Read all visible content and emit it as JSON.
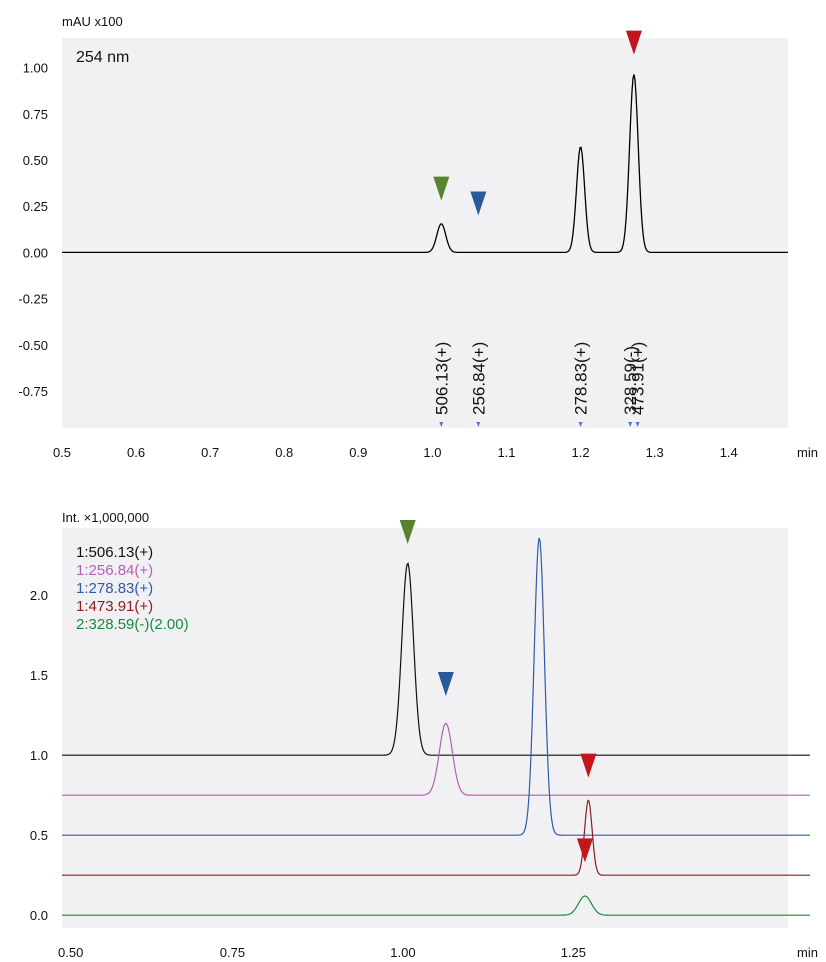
{
  "chart_data": [
    {
      "type": "line",
      "panel": "uv",
      "ylabel": "mAU x100",
      "xlabel": "min",
      "annotation": "254 nm",
      "xlim": [
        0.5,
        1.48
      ],
      "ylim": [
        -0.95,
        1.16
      ],
      "x_ticks": [
        "0.5",
        "0.6",
        "0.7",
        "0.8",
        "0.9",
        "1.0",
        "1.1",
        "1.2",
        "1.3",
        "1.4"
      ],
      "y_ticks": [
        "1.00",
        "0.75",
        "0.50",
        "0.25",
        "0.00",
        "-0.25",
        "-0.50",
        "-0.75"
      ],
      "grid": false,
      "baseline": 0.0,
      "peaks": [
        {
          "rt": 1.012,
          "height": 0.155,
          "width": 0.006
        },
        {
          "rt": 1.2,
          "height": 0.572,
          "width": 0.0055
        },
        {
          "rt": 1.272,
          "height": 0.963,
          "width": 0.0058
        }
      ],
      "markers": [
        {
          "x": 1.012,
          "y": 0.28,
          "color": "#56842c"
        },
        {
          "x": 1.062,
          "y": 0.2,
          "color": "#2a5a9c"
        },
        {
          "x": 1.272,
          "y": 1.07,
          "color": "#c0161c"
        }
      ],
      "mass_labels": [
        {
          "x": 1.012,
          "label": "506.13(+)"
        },
        {
          "x": 1.062,
          "label": "256.84(+)"
        },
        {
          "x": 1.2,
          "label": "278.83(+)"
        },
        {
          "x": 1.267,
          "label": "328.59(-)"
        },
        {
          "x": 1.277,
          "label": "473.91(+)"
        }
      ],
      "small_tick_marks_x": [
        1.012,
        1.062,
        1.2,
        1.267,
        1.277
      ],
      "colors": {
        "trace": "#000000",
        "plot_bg": "#f1f1f4"
      }
    },
    {
      "type": "line",
      "panel": "ms",
      "ylabel": "Int. ×1,000,000",
      "xlabel": "min",
      "xlim": [
        0.5,
        1.6
      ],
      "ylim": [
        -0.08,
        2.42
      ],
      "x_ticks": [
        "0.50",
        "0.75",
        "1.00",
        "1.25"
      ],
      "y_ticks": [
        "2.0",
        "1.5",
        "1.0",
        "0.5",
        "0.0"
      ],
      "grid": false,
      "series": [
        {
          "name": "1:506.13(+)",
          "color": "#111111",
          "baseline": 1.0,
          "peak_rt": 1.007,
          "peak_height": 1.2,
          "width": 0.0085
        },
        {
          "name": "1:256.84(+)",
          "color": "#b85cb5",
          "baseline": 0.75,
          "peak_rt": 1.063,
          "peak_height": 0.45,
          "width": 0.0095
        },
        {
          "name": "1:278.83(+)",
          "color": "#2f5aa8",
          "baseline": 0.5,
          "peak_rt": 1.2,
          "peak_height": 1.86,
          "width": 0.0075
        },
        {
          "name": "1:473.91(+)",
          "color": "#8a1e22",
          "baseline": 0.25,
          "peak_rt": 1.272,
          "peak_height": 0.47,
          "width": 0.0055
        },
        {
          "name": "2:328.59(-)(2.00)",
          "color": "#178a3e",
          "baseline": 0.0,
          "peak_rt": 1.267,
          "peak_height": 0.12,
          "width": 0.0095
        }
      ],
      "markers": [
        {
          "x": 1.007,
          "y": 2.32,
          "color": "#56842c"
        },
        {
          "x": 1.063,
          "y": 1.37,
          "color": "#2a5a9c"
        },
        {
          "x": 1.272,
          "y": 0.86,
          "color": "#c0161c"
        },
        {
          "x": 1.267,
          "y": 0.33,
          "color": "#c0161c"
        }
      ],
      "colors": {
        "plot_bg": "#f1f1f4"
      }
    }
  ]
}
